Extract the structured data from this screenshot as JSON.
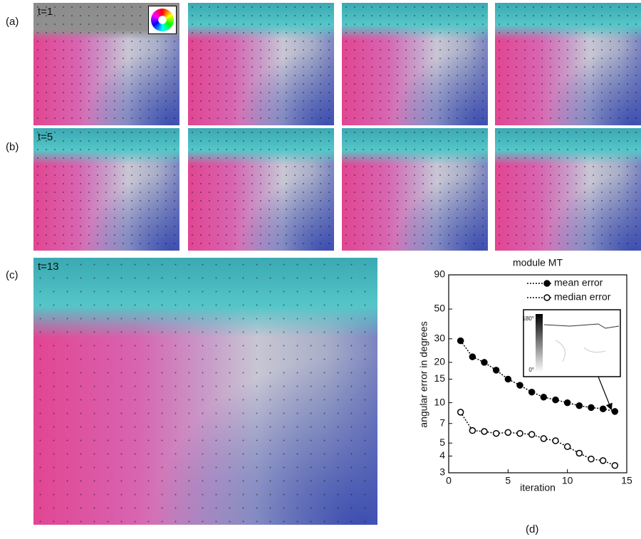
{
  "panels": {
    "a": {
      "label": "(a)",
      "time": "t=1"
    },
    "b": {
      "label": "(b)",
      "time": "t=5"
    },
    "c": {
      "label": "(c)",
      "time": "t=13"
    },
    "d": {
      "label": "(d)"
    }
  },
  "chart_data": {
    "type": "line",
    "title": "module MT",
    "x_label": "iteration",
    "y_label": "angular error in degrees",
    "x": [
      1,
      2,
      3,
      4,
      5,
      6,
      7,
      8,
      9,
      10,
      11,
      12,
      13,
      14
    ],
    "series": [
      {
        "name": "mean error",
        "color": "#000000",
        "marker": "filled",
        "values": [
          29,
          22,
          20,
          17.5,
          15,
          13.5,
          12,
          11,
          10.5,
          10,
          9.5,
          9.2,
          9,
          8.6
        ]
      },
      {
        "name": "median error",
        "color": "#000000",
        "marker": "open",
        "values": [
          8.5,
          6.2,
          6.1,
          5.9,
          6,
          5.9,
          5.8,
          5.4,
          5.2,
          4.7,
          4.2,
          3.8,
          3.7,
          3.4
        ]
      }
    ],
    "xlim": [
      0,
      15
    ],
    "xticks": [
      0,
      5,
      10,
      15
    ],
    "ylim": [
      3,
      90
    ],
    "yticks": [
      3,
      4,
      5,
      7,
      10,
      15,
      20,
      30,
      50,
      90
    ],
    "log_y": true,
    "legend": "top-right",
    "inset_labels": [
      "180°",
      "0°"
    ]
  }
}
